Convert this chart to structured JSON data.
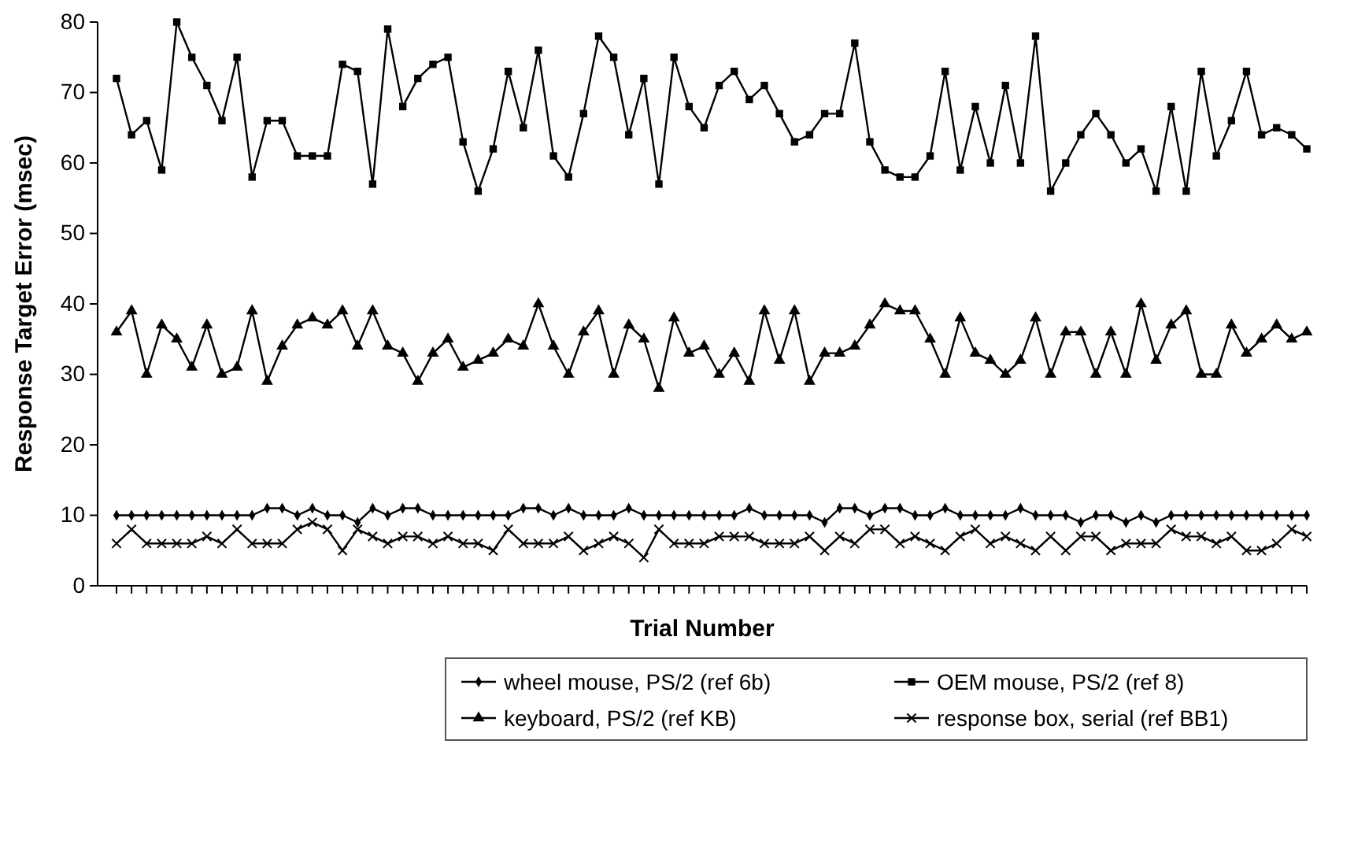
{
  "chart_data": {
    "type": "line",
    "xlabel": "Trial Number",
    "ylabel": "Response Target Error (msec)",
    "categories": [
      null,
      null,
      null,
      null,
      null,
      null,
      null,
      null,
      null,
      null,
      null,
      null,
      null,
      null,
      null,
      null,
      null,
      null,
      null,
      null,
      null,
      null,
      null,
      null,
      null,
      null,
      null,
      null,
      null,
      null,
      null,
      null,
      null,
      null,
      null,
      null,
      null,
      null,
      null,
      null,
      null,
      null,
      null,
      null,
      null,
      null,
      null,
      null,
      null,
      null,
      null,
      null,
      null,
      null,
      null,
      null,
      null,
      null,
      null,
      null,
      null,
      null,
      null,
      null,
      null,
      null,
      null,
      null,
      null,
      null,
      null,
      null,
      null,
      null,
      null,
      null,
      null,
      null,
      null,
      null
    ],
    "ylim": [
      0,
      80
    ],
    "yticks": [
      0,
      10,
      20,
      30,
      40,
      50,
      60,
      70,
      80
    ],
    "tick_labels": "y",
    "legend": "bottom",
    "line_style": "solid",
    "series": [
      {
        "name": "wheel mouse, PS/2 (ref 6b)",
        "color": "#000000",
        "marker": "diamond",
        "values": [
          10,
          10,
          10,
          10,
          10,
          10,
          10,
          10,
          10,
          10,
          11,
          11,
          10,
          11,
          10,
          10,
          9,
          11,
          10,
          11,
          11,
          10,
          10,
          10,
          10,
          10,
          10,
          11,
          11,
          10,
          11,
          10,
          10,
          10,
          11,
          10,
          10,
          10,
          10,
          10,
          10,
          10,
          11,
          10,
          10,
          10,
          10,
          9,
          11,
          11,
          10,
          11,
          11,
          10,
          10,
          11,
          10,
          10,
          10,
          10,
          11,
          10,
          10,
          10,
          9,
          10,
          10,
          9,
          10,
          9,
          10,
          10,
          10,
          10,
          10,
          10,
          10,
          10,
          10,
          10
        ]
      },
      {
        "name": "OEM mouse, PS/2 (ref 8)",
        "color": "#000000",
        "marker": "square",
        "values": [
          72,
          64,
          66,
          59,
          80,
          75,
          71,
          66,
          75,
          58,
          66,
          66,
          61,
          61,
          61,
          74,
          73,
          57,
          79,
          68,
          72,
          74,
          75,
          63,
          56,
          62,
          73,
          65,
          76,
          61,
          58,
          67,
          78,
          75,
          64,
          72,
          57,
          75,
          68,
          65,
          71,
          73,
          69,
          71,
          67,
          63,
          64,
          67,
          67,
          77,
          63,
          59,
          58,
          58,
          61,
          73,
          59,
          68,
          60,
          71,
          60,
          78,
          56,
          60,
          64,
          67,
          64,
          60,
          62,
          56,
          68,
          56,
          73,
          61,
          66,
          73,
          64,
          65,
          64,
          62
        ]
      },
      {
        "name": "keyboard, PS/2 (ref KB)",
        "color": "#000000",
        "marker": "triangle",
        "values": [
          36,
          39,
          30,
          37,
          35,
          31,
          37,
          30,
          31,
          39,
          29,
          34,
          37,
          38,
          37,
          39,
          34,
          39,
          34,
          33,
          29,
          33,
          35,
          31,
          32,
          33,
          35,
          34,
          40,
          34,
          30,
          36,
          39,
          30,
          37,
          35,
          28,
          38,
          33,
          34,
          30,
          33,
          29,
          39,
          32,
          39,
          29,
          33,
          33,
          34,
          37,
          40,
          39,
          39,
          35,
          30,
          38,
          33,
          32,
          30,
          32,
          38,
          30,
          36,
          36,
          30,
          36,
          30,
          40,
          32,
          37,
          39,
          30,
          30,
          37,
          33,
          35,
          37,
          35,
          36
        ]
      },
      {
        "name": "response box, serial (ref BB1)",
        "color": "#000000",
        "marker": "cross",
        "values": [
          6,
          8,
          6,
          6,
          6,
          6,
          7,
          6,
          8,
          6,
          6,
          6,
          8,
          9,
          8,
          5,
          8,
          7,
          6,
          7,
          7,
          6,
          7,
          6,
          6,
          5,
          8,
          6,
          6,
          6,
          7,
          5,
          6,
          7,
          6,
          4,
          8,
          6,
          6,
          6,
          7,
          7,
          7,
          6,
          6,
          6,
          7,
          5,
          7,
          6,
          8,
          8,
          6,
          7,
          6,
          5,
          7,
          8,
          6,
          7,
          6,
          5,
          7,
          5,
          7,
          7,
          5,
          6,
          6,
          6,
          8,
          7,
          7,
          6,
          7,
          5,
          5,
          6,
          8,
          7
        ]
      }
    ]
  }
}
